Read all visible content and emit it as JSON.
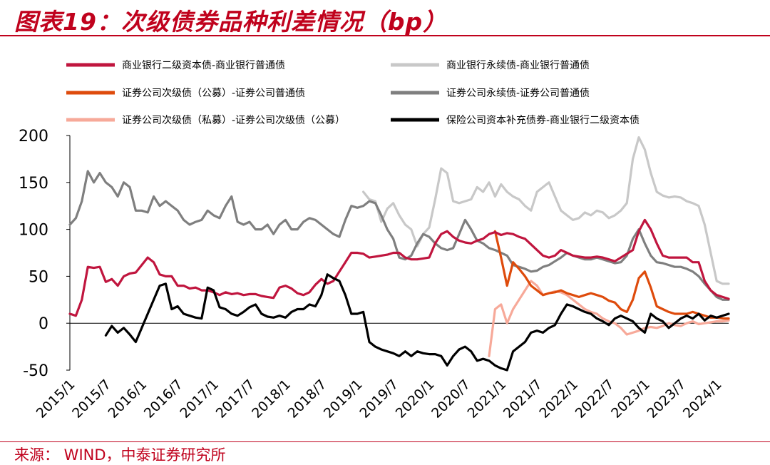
{
  "title": "图表19：次级债券品种利差情况（bp）",
  "source": "来源：  WIND，中泰证券研究所",
  "chart_data": {
    "type": "line",
    "x": [
      "2015/1",
      "2015/2",
      "2015/3",
      "2015/4",
      "2015/5",
      "2015/6",
      "2015/7",
      "2015/8",
      "2015/9",
      "2015/10",
      "2015/11",
      "2015/12",
      "2016/1",
      "2016/2",
      "2016/3",
      "2016/4",
      "2016/5",
      "2016/6",
      "2016/7",
      "2016/8",
      "2016/9",
      "2016/10",
      "2016/11",
      "2016/12",
      "2017/1",
      "2017/2",
      "2017/3",
      "2017/4",
      "2017/5",
      "2017/6",
      "2017/7",
      "2017/8",
      "2017/9",
      "2017/10",
      "2017/11",
      "2017/12",
      "2018/1",
      "2018/2",
      "2018/3",
      "2018/4",
      "2018/5",
      "2018/6",
      "2018/7",
      "2018/8",
      "2018/9",
      "2018/10",
      "2018/11",
      "2018/12",
      "2019/1",
      "2019/2",
      "2019/3",
      "2019/4",
      "2019/5",
      "2019/6",
      "2019/7",
      "2019/8",
      "2019/9",
      "2019/10",
      "2019/11",
      "2019/12",
      "2020/1",
      "2020/2",
      "2020/3",
      "2020/4",
      "2020/5",
      "2020/6",
      "2020/7",
      "2020/8",
      "2020/9",
      "2020/10",
      "2020/11",
      "2020/12",
      "2021/1",
      "2021/2",
      "2021/3",
      "2021/4",
      "2021/5",
      "2021/6",
      "2021/7",
      "2021/8",
      "2021/9",
      "2021/10",
      "2021/11",
      "2021/12",
      "2022/1",
      "2022/2",
      "2022/3",
      "2022/4",
      "2022/5",
      "2022/6",
      "2022/7",
      "2022/8",
      "2022/9",
      "2022/10",
      "2022/11",
      "2022/12",
      "2023/1",
      "2023/2",
      "2023/3",
      "2023/4",
      "2023/5",
      "2023/6",
      "2023/7",
      "2023/8",
      "2023/9",
      "2023/10",
      "2023/11",
      "2023/12",
      "2024/1",
      "2024/2",
      "2024/3"
    ],
    "x_tick_labels": [
      "2015/1",
      "2015/7",
      "2016/1",
      "2016/7",
      "2017/1",
      "2017/7",
      "2018/1",
      "2018/7",
      "2019/1",
      "2019/7",
      "2020/1",
      "2020/7",
      "2021/1",
      "2021/7",
      "2022/1",
      "2022/7",
      "2023/1",
      "2023/7",
      "2024/1"
    ],
    "ylim": [
      -50,
      200
    ],
    "y_ticks": [
      -50,
      0,
      50,
      100,
      150,
      200
    ],
    "legend_position": "top",
    "series": [
      {
        "name": "商业银行二级资本债-商业银行普通债",
        "color": "#c0153e",
        "values": [
          10,
          8,
          25,
          60,
          59,
          60,
          44,
          47,
          40,
          50,
          53,
          54,
          62,
          70,
          65,
          52,
          50,
          50,
          40,
          40,
          37,
          38,
          35,
          35,
          33,
          30,
          33,
          31,
          32,
          30,
          31,
          31,
          29,
          28,
          27,
          38,
          40,
          37,
          32,
          30,
          33,
          41,
          47,
          42,
          45,
          55,
          65,
          75,
          75,
          74,
          70,
          71,
          72,
          73,
          75,
          75,
          70,
          68,
          68,
          69,
          70,
          85,
          95,
          98,
          92,
          88,
          86,
          85,
          88,
          90,
          95,
          97,
          94,
          96,
          95,
          92,
          90,
          84,
          78,
          72,
          70,
          72,
          78,
          75,
          72,
          71,
          70,
          70,
          71,
          70,
          68,
          66,
          70,
          74,
          78,
          98,
          110,
          100,
          85,
          72,
          70,
          70,
          70,
          70,
          65,
          65,
          45,
          35,
          30,
          28,
          26
        ]
      },
      {
        "name": "商业银行永续债-商业银行普通债",
        "color": "#c8c8c8",
        "values": [
          null,
          null,
          null,
          null,
          null,
          null,
          null,
          null,
          null,
          null,
          null,
          null,
          null,
          null,
          null,
          null,
          null,
          null,
          null,
          null,
          null,
          null,
          null,
          null,
          null,
          null,
          null,
          null,
          null,
          null,
          null,
          null,
          null,
          null,
          null,
          null,
          null,
          null,
          null,
          null,
          null,
          null,
          null,
          null,
          null,
          null,
          null,
          null,
          null,
          140,
          132,
          130,
          108,
          122,
          128,
          115,
          105,
          100,
          82,
          95,
          102,
          132,
          165,
          160,
          130,
          128,
          130,
          132,
          145,
          140,
          150,
          135,
          148,
          140,
          135,
          132,
          125,
          120,
          140,
          145,
          150,
          135,
          120,
          115,
          110,
          112,
          118,
          115,
          120,
          118,
          112,
          115,
          120,
          128,
          175,
          198,
          185,
          160,
          140,
          136,
          134,
          135,
          134,
          130,
          128,
          125,
          105,
          75,
          45,
          42,
          42
        ]
      },
      {
        "name": "证券公司次级债（公募）-证券公司普通债",
        "color": "#de4b0c",
        "values": [
          null,
          null,
          null,
          null,
          null,
          null,
          null,
          null,
          null,
          null,
          null,
          null,
          null,
          null,
          null,
          null,
          null,
          null,
          null,
          null,
          null,
          null,
          null,
          null,
          null,
          null,
          null,
          null,
          null,
          null,
          null,
          null,
          null,
          null,
          null,
          null,
          null,
          null,
          null,
          null,
          null,
          null,
          null,
          null,
          null,
          null,
          null,
          null,
          null,
          null,
          null,
          null,
          null,
          null,
          null,
          null,
          null,
          null,
          null,
          null,
          null,
          null,
          null,
          null,
          null,
          null,
          null,
          null,
          null,
          null,
          null,
          98,
          70,
          40,
          65,
          58,
          50,
          40,
          35,
          30,
          32,
          33,
          35,
          32,
          30,
          28,
          30,
          32,
          30,
          28,
          24,
          22,
          15,
          12,
          25,
          48,
          55,
          38,
          18,
          15,
          12,
          10,
          10,
          10,
          12,
          10,
          8,
          6,
          6,
          5,
          5
        ]
      },
      {
        "name": "证券公司永续债-证券公司普通债",
        "color": "#7f7f7f",
        "values": [
          105,
          112,
          130,
          162,
          150,
          160,
          150,
          145,
          135,
          150,
          145,
          120,
          120,
          118,
          135,
          125,
          130,
          125,
          120,
          110,
          105,
          108,
          110,
          120,
          115,
          112,
          125,
          135,
          108,
          105,
          108,
          100,
          100,
          105,
          95,
          105,
          110,
          100,
          100,
          108,
          112,
          110,
          105,
          100,
          95,
          92,
          110,
          125,
          123,
          125,
          130,
          128,
          115,
          100,
          90,
          70,
          68,
          72,
          85,
          95,
          92,
          85,
          80,
          78,
          80,
          95,
          110,
          100,
          88,
          85,
          80,
          78,
          75,
          72,
          62,
          60,
          58,
          55,
          56,
          60,
          62,
          66,
          70,
          75,
          72,
          70,
          68,
          68,
          70,
          68,
          66,
          64,
          65,
          72,
          90,
          100,
          85,
          72,
          65,
          64,
          62,
          60,
          60,
          58,
          55,
          50,
          42,
          35,
          28,
          25,
          25
        ]
      },
      {
        "name": "证券公司次级债（私募）-证券公司次级债（公募）",
        "color": "#f7a999",
        "values": [
          null,
          null,
          null,
          null,
          null,
          null,
          null,
          null,
          null,
          null,
          null,
          null,
          null,
          null,
          null,
          null,
          null,
          null,
          null,
          null,
          null,
          null,
          null,
          null,
          null,
          null,
          null,
          null,
          null,
          null,
          null,
          null,
          null,
          null,
          null,
          null,
          null,
          null,
          null,
          null,
          null,
          null,
          null,
          null,
          null,
          null,
          null,
          null,
          null,
          null,
          null,
          null,
          null,
          null,
          null,
          null,
          null,
          null,
          null,
          null,
          null,
          null,
          null,
          null,
          null,
          null,
          null,
          null,
          null,
          null,
          -35,
          15,
          20,
          0,
          15,
          25,
          35,
          45,
          40,
          30,
          32,
          34,
          33,
          30,
          25,
          20,
          15,
          12,
          10,
          5,
          2,
          0,
          -5,
          -12,
          -10,
          -8,
          -5,
          -4,
          -5,
          -3,
          0,
          -2,
          -3,
          0,
          2,
          -1,
          0,
          1,
          2,
          2,
          3
        ]
      },
      {
        "name": "保险公司资本补充债券-商业银行二级资本债",
        "color": "#000000",
        "values": [
          null,
          null,
          null,
          null,
          null,
          null,
          -13,
          -3,
          -10,
          -5,
          -12,
          -20,
          -5,
          10,
          25,
          40,
          42,
          15,
          18,
          10,
          8,
          6,
          5,
          38,
          35,
          17,
          15,
          10,
          8,
          12,
          17,
          20,
          10,
          7,
          6,
          8,
          6,
          12,
          15,
          15,
          20,
          18,
          30,
          52,
          48,
          45,
          30,
          10,
          10,
          12,
          -20,
          -25,
          -28,
          -30,
          -32,
          -35,
          -30,
          -35,
          -30,
          -32,
          -33,
          -33,
          -35,
          -45,
          -35,
          -28,
          -25,
          -30,
          -40,
          -38,
          -40,
          -45,
          -48,
          -50,
          -30,
          -25,
          -20,
          -10,
          -8,
          -10,
          -5,
          -2,
          10,
          20,
          18,
          15,
          12,
          10,
          5,
          2,
          -2,
          5,
          8,
          5,
          2,
          -5,
          -10,
          10,
          5,
          2,
          -5,
          0,
          5,
          8,
          5,
          10,
          3,
          8,
          6,
          8,
          10
        ]
      }
    ]
  }
}
